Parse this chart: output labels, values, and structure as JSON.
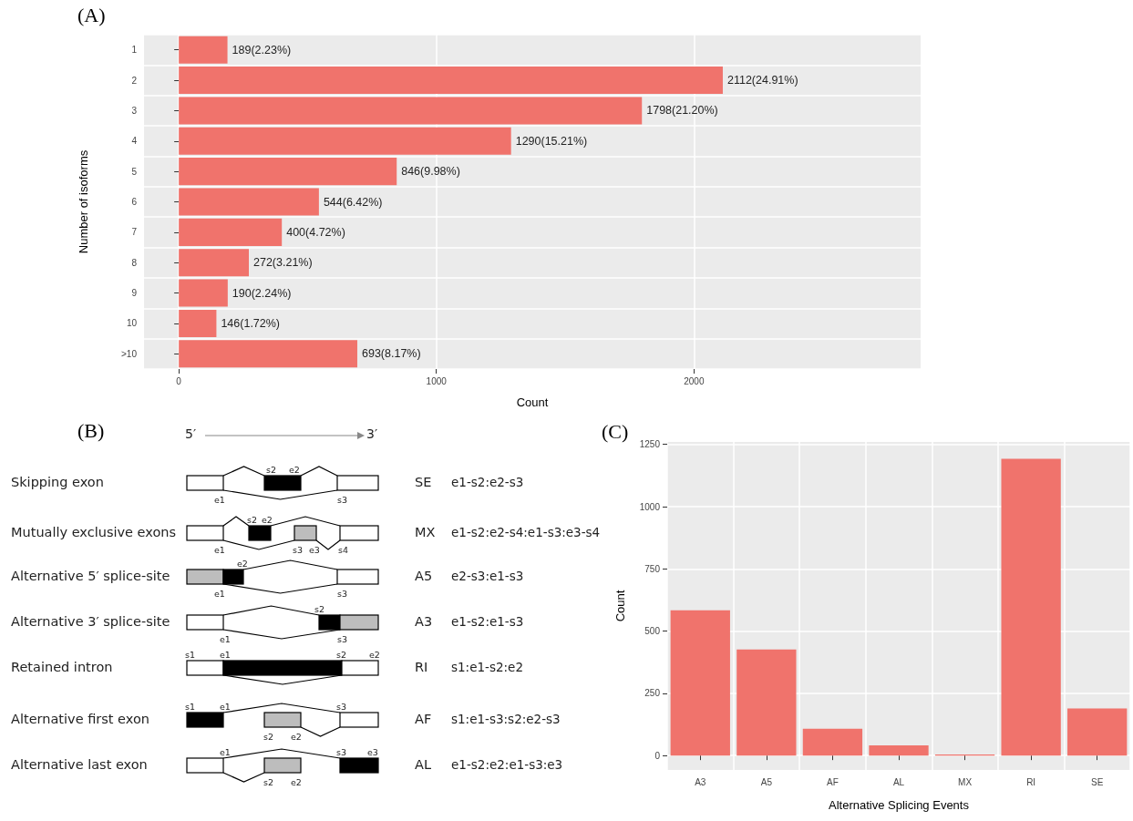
{
  "chart_data": [
    {
      "type": "bar",
      "orientation": "horizontal",
      "title": "(A)",
      "xlabel": "Count",
      "ylabel": "Number of isoforms",
      "categories": [
        "1",
        "2",
        "3",
        "4",
        "5",
        "6",
        "7",
        "8",
        "9",
        "10",
        ">10"
      ],
      "values": [
        189,
        2112,
        1798,
        1290,
        846,
        544,
        400,
        272,
        190,
        146,
        693
      ],
      "value_labels": [
        "189(2.23%)",
        "2112(24.91%)",
        "1798(21.20%)",
        "1290(15.21%)",
        "846(9.98%)",
        "544(6.42%)",
        "400(4.72%)",
        "272(3.21%)",
        "190(2.24%)",
        "146(1.72%)",
        "693(8.17%)"
      ],
      "color": "#f0736c",
      "xlim": [
        -135,
        2880
      ],
      "xticks": [
        0,
        1000,
        2000
      ],
      "grid": true
    },
    {
      "type": "other",
      "title": "(B)",
      "annotations": [
        "5′",
        "3′",
        "Skipping exon",
        "SE",
        "e1-s2:e2-s3",
        "s2",
        "e2",
        "e1",
        "s3",
        "Mutually exclusive exons",
        "MX",
        "e1-s2:e2-s4:e1-s3:e3-s4",
        "s2",
        "e2",
        "e1",
        "s3",
        "e3",
        "s4",
        "Alternative 5′ splice-site",
        "A5",
        "e2-s3:e1-s3",
        "e2",
        "e1",
        "s3",
        "Alternative 3′ splice-site",
        "A3",
        "e1-s2:e1-s3",
        "s2",
        "e1",
        "s3",
        "Retained intron",
        "RI",
        "s1:e1-s2:e2",
        "s1",
        "e1",
        "s2",
        "e2",
        "Alternative first exon",
        "AF",
        "s1:e1-s3:s2:e2-s3",
        "s1",
        "e1",
        "s3",
        "s2",
        "e2",
        "Alternative last exon",
        "AL",
        "e1-s2:e2:e1-s3:e3",
        "e1",
        "s3",
        "e3",
        "s2",
        "e2"
      ]
    },
    {
      "type": "bar",
      "title": "(C)",
      "xlabel": "Alternative Splicing Events",
      "ylabel": "Count",
      "categories": [
        "A3",
        "A5",
        "AF",
        "AL",
        "MX",
        "RI",
        "SE"
      ],
      "values": [
        584,
        426,
        108,
        41,
        4,
        1192,
        189
      ],
      "color": "#f0736c",
      "ylim": [
        -58,
        1260
      ],
      "yticks": [
        0,
        250,
        500,
        750,
        1000,
        1250
      ],
      "grid": true
    }
  ]
}
